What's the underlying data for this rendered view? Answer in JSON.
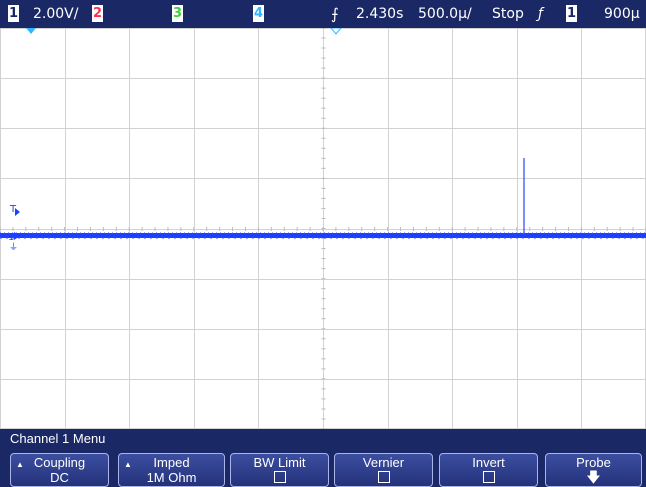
{
  "status": {
    "ch1_number": "1",
    "ch1_scale": "2.00V/",
    "ch2_number": "2",
    "ch3_number": "3",
    "ch4_number": "4",
    "trigger_time": "2.430s",
    "time_scale": "500.0µ/",
    "run_state": "Stop",
    "trigger_slope": "ƒ",
    "trigger_source": "1",
    "trigger_level": "900µ"
  },
  "colors": {
    "ch1": "#1f3fff",
    "ch2": "#ff2d55",
    "ch3": "#3fcf3f",
    "ch4": "#2fb6ff",
    "bar": "#1a2866",
    "grid": "#d2d2d2"
  },
  "markers": {
    "trigger_level_label": "T",
    "ground_label": "1"
  },
  "menu": {
    "title": "Channel 1  Menu",
    "softkeys": [
      {
        "label": "Coupling",
        "value": "DC"
      },
      {
        "label": "Imped",
        "value": "1M Ohm"
      },
      {
        "label": "BW Limit",
        "value": ""
      },
      {
        "label": "Vernier",
        "value": ""
      },
      {
        "label": "Invert",
        "value": ""
      },
      {
        "label": "Probe",
        "value": ""
      }
    ]
  }
}
